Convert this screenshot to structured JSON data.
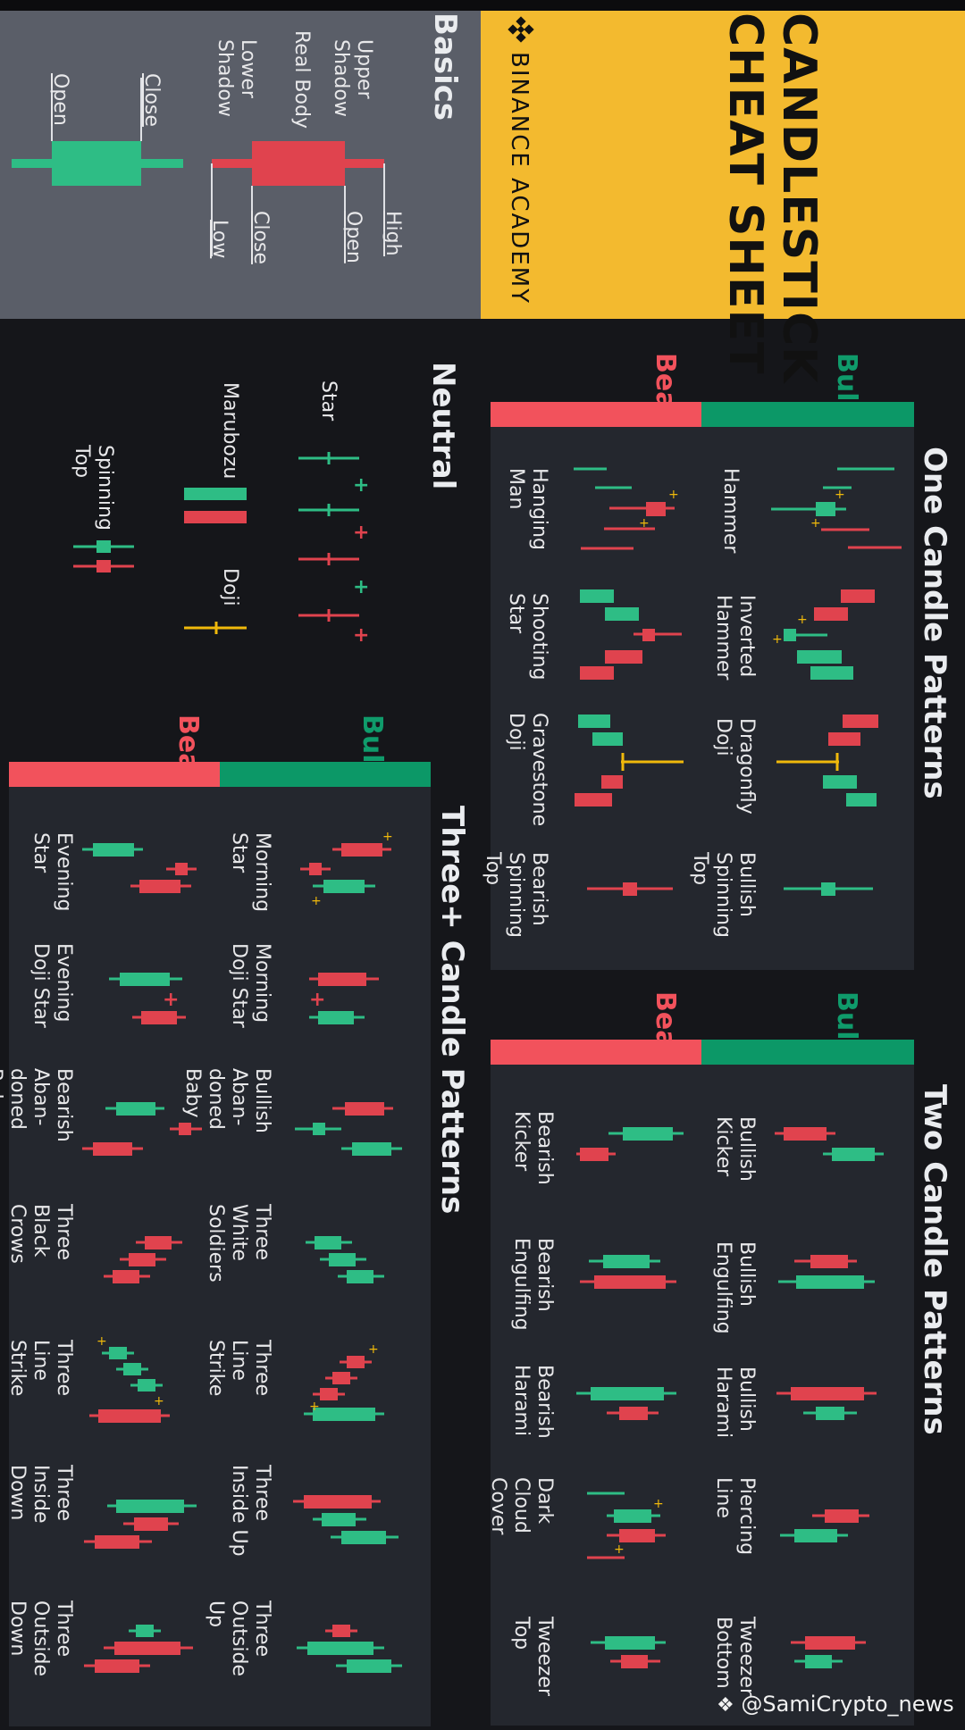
{
  "header": {
    "title_line1": "CANDLESTICK",
    "title_line2": "CHEAT SHEET",
    "brand": "BINANCE ACADEMY"
  },
  "basics": {
    "title": "Basics",
    "upper_shadow": "Upper Shadow",
    "real_body": "Real Body",
    "lower_shadow": "Lower Shadow",
    "high": "High",
    "open": "Open",
    "close": "Close",
    "low": "Low"
  },
  "sections": {
    "one": "One Candle Patterns",
    "two": "Two Candle Patterns",
    "neutral": "Neutral",
    "three": "Three+ Candle Patterns"
  },
  "legend": {
    "bullish": "Bullish",
    "bearish": "Bearish"
  },
  "one_candle": {
    "bullish": [
      "Hammer",
      "Inverted Hammer",
      "Dragonfly Doji",
      "Bullish Spinning Top"
    ],
    "bearish": [
      "Hanging Man",
      "Shooting Star",
      "Gravestone Doji",
      "Bearish Spinning Top"
    ]
  },
  "two_candle": {
    "bullish": [
      "Bullish Kicker",
      "Bullish Engulfing",
      "Bullish Harami",
      "Piercing Line",
      "Tweezer Bottom"
    ],
    "bearish": [
      "Bearish Kicker",
      "Bearish Engulfing",
      "Bearish Harami",
      "Dark Cloud Cover",
      "Tweezer Top"
    ]
  },
  "neutral": {
    "star": "Star",
    "marubozu": "Marubozu",
    "doji": "Doji",
    "spinning_top": "Spinning Top"
  },
  "three_candle": {
    "bullish": [
      "Morning Star",
      "Morning Doji Star",
      "Bullish Aban-doned Baby",
      "Three White Soldiers",
      "Three Line Strike",
      "Three Inside Up",
      "Three Outside Up"
    ],
    "bearish": [
      "Evening Star",
      "Evening Doji Star",
      "Bearish Aban-doned Baby",
      "Three Black Crows",
      "Three Line Strike",
      "Three Inside Down",
      "Three Outside Down"
    ]
  },
  "watermark": "@SamiCrypto_news",
  "colors": {
    "bullish": "#2ebd85",
    "bearish": "#e0434e",
    "brand": "#f3ba2f",
    "panel": "#5a5e68",
    "dark_panel": "#22252b",
    "accent_line": "#f0b90b"
  }
}
